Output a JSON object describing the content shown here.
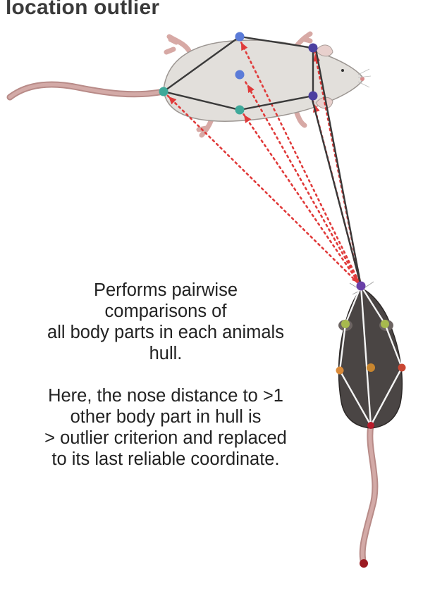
{
  "title": "location outlier",
  "description": {
    "para1": [
      "Performs pairwise",
      "comparisons of",
      "all body parts in each animals",
      "hull."
    ],
    "para2": [
      "Here, the nose distance to >1",
      "other body part in hull is",
      "> outlier criterion and replaced",
      "to its last reliable coordinate."
    ]
  },
  "colors": {
    "dashed_line": "#e03a3a",
    "hull_line_light": "#3a3a3a",
    "hull_line_dark": "#f4f4f4",
    "light_mouse_body": "#e2dfdb",
    "dark_mouse_body": "#4a4544",
    "tail": "#c99b98",
    "point_blue": "#5b7bd8",
    "point_teal": "#3fa99a",
    "point_purple": "#4b3fa0",
    "point_green": "#a7b94e",
    "point_orange": "#d98a3a",
    "point_red": "#b71c2c"
  }
}
